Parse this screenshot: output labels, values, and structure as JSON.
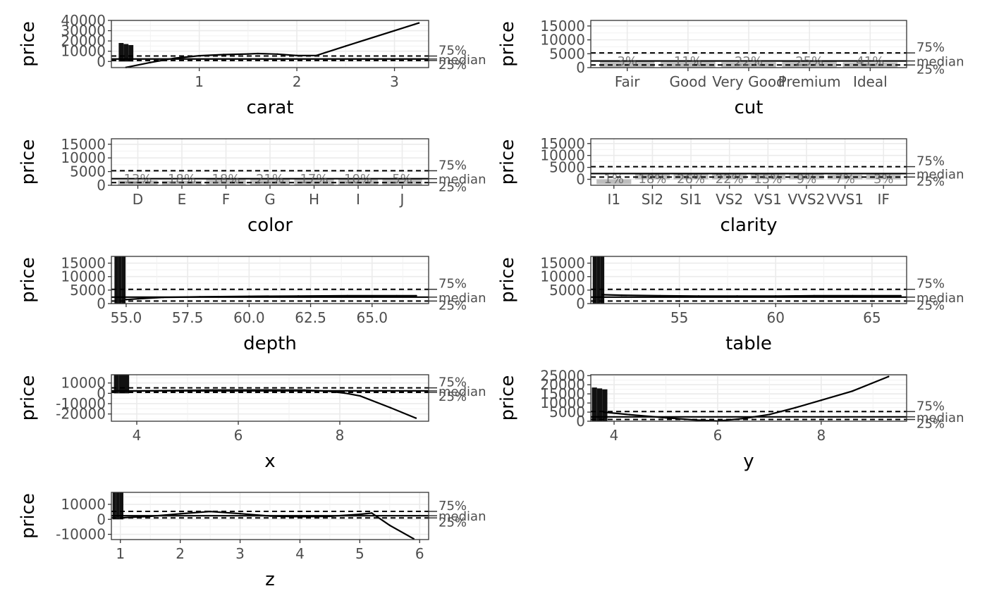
{
  "chart_data": [
    {
      "type": "line",
      "panel_id": "carat",
      "xlabel": "carat",
      "ylabel": "price",
      "xlim": [
        0.1,
        3.35
      ],
      "ylim": [
        -6000,
        40000
      ],
      "x_ticks": [
        1,
        2,
        3
      ],
      "x_tick_labels": [
        "1",
        "2",
        "3"
      ],
      "y_ticks": [
        0,
        10000,
        20000,
        30000,
        40000
      ],
      "y_tick_labels": [
        "0",
        "10000",
        "20000",
        "30000",
        "40000"
      ],
      "reference_lines": {
        "q25": 950,
        "median": 2400,
        "q75": 5300
      },
      "reference_labels": {
        "q25": "25%",
        "median": "median",
        "q75": "75%"
      },
      "histogram": {
        "x": [
          0.2,
          0.25,
          0.3
        ],
        "heights": [
          18000,
          17000,
          16000
        ]
      },
      "trend": {
        "x": [
          0.25,
          0.5,
          0.75,
          1.0,
          1.25,
          1.5,
          1.6,
          1.8,
          2.0,
          2.2,
          2.5,
          3.0,
          3.25
        ],
        "y": [
          -5800,
          -1000,
          3200,
          5600,
          6700,
          7300,
          7700,
          7200,
          5800,
          5800,
          15000,
          30000,
          37500
        ]
      }
    },
    {
      "type": "bar",
      "panel_id": "cut",
      "xlabel": "cut",
      "ylabel": "price",
      "categories": [
        "Fair",
        "Good",
        "Very Good",
        "Premium",
        "Ideal"
      ],
      "percent_labels": [
        "3%",
        "11%",
        "22%",
        "25%",
        "41%"
      ],
      "values": [
        2200,
        2100,
        2000,
        2400,
        1900
      ],
      "ylim": [
        0,
        17000
      ],
      "y_ticks": [
        0,
        5000,
        10000,
        15000
      ],
      "y_tick_labels": [
        "0",
        "5000",
        "10000",
        "15000"
      ],
      "reference_lines": {
        "q25": 950,
        "median": 2400,
        "q75": 5300
      },
      "reference_labels": {
        "q25": "25%",
        "median": "median",
        "q75": "75%"
      }
    },
    {
      "type": "bar",
      "panel_id": "color",
      "xlabel": "color",
      "ylabel": "price",
      "categories": [
        "D",
        "E",
        "F",
        "G",
        "H",
        "I",
        "J"
      ],
      "percent_labels": [
        "13%",
        "18%",
        "18%",
        "21%",
        "17%",
        "10%",
        "5%"
      ],
      "values": [
        1800,
        1700,
        2300,
        2200,
        2400,
        2200,
        2300
      ],
      "ylim": [
        0,
        17000
      ],
      "y_ticks": [
        0,
        5000,
        10000,
        15000
      ],
      "y_tick_labels": [
        "0",
        "5000",
        "10000",
        "15000"
      ],
      "reference_lines": {
        "q25": 950,
        "median": 2400,
        "q75": 5300
      },
      "reference_labels": {
        "q25": "25%",
        "median": "median",
        "q75": "75%"
      }
    },
    {
      "type": "bar",
      "panel_id": "clarity",
      "xlabel": "clarity",
      "ylabel": "price",
      "categories": [
        "I1",
        "SI2",
        "SI1",
        "VS2",
        "VS1",
        "VVS2",
        "VVS1",
        "IF"
      ],
      "percent_labels": [
        "1%",
        "18%",
        "26%",
        "22%",
        "15%",
        "9%",
        "7%",
        "3%"
      ],
      "values": [
        -2000,
        2500,
        2300,
        2300,
        2200,
        2100,
        1900,
        2000
      ],
      "ylim": [
        -2500,
        17000
      ],
      "y_ticks": [
        0,
        5000,
        10000,
        15000
      ],
      "y_tick_labels": [
        "0",
        "5000",
        "10000",
        "15000"
      ],
      "reference_lines": {
        "q25": 950,
        "median": 2400,
        "q75": 5300
      },
      "reference_labels": {
        "q25": "25%",
        "median": "median",
        "q75": "75%"
      }
    },
    {
      "type": "line",
      "panel_id": "depth",
      "xlabel": "depth",
      "ylabel": "price",
      "xlim": [
        54.4,
        67.3
      ],
      "ylim": [
        0,
        17500
      ],
      "x_ticks": [
        55,
        57.5,
        60,
        62.5,
        65
      ],
      "x_tick_labels": [
        "55.0",
        "57.5",
        "60.0",
        "62.5",
        "65.0"
      ],
      "y_ticks": [
        0,
        5000,
        10000,
        15000
      ],
      "y_tick_labels": [
        "0",
        "5000",
        "10000",
        "15000"
      ],
      "reference_lines": {
        "q25": 950,
        "median": 2400,
        "q75": 5300
      },
      "reference_labels": {
        "q25": "25%",
        "median": "median",
        "q75": "75%"
      },
      "histogram": {
        "x": [
          54.6,
          54.75,
          54.9
        ],
        "heights": [
          17500,
          17500,
          17500
        ]
      },
      "trend": {
        "x": [
          55.0,
          55.5,
          56.5,
          58.0,
          60.0,
          62.0,
          64.0,
          66.0,
          66.8
        ],
        "y": [
          1500,
          1800,
          2300,
          2500,
          2700,
          2800,
          2900,
          2900,
          2900
        ]
      }
    },
    {
      "type": "line",
      "panel_id": "table",
      "xlabel": "table",
      "ylabel": "price",
      "xlim": [
        50.4,
        66.8
      ],
      "ylim": [
        0,
        17500
      ],
      "x_ticks": [
        55,
        60,
        65
      ],
      "x_tick_labels": [
        "55",
        "60",
        "65"
      ],
      "y_ticks": [
        0,
        5000,
        10000,
        15000
      ],
      "y_tick_labels": [
        "0",
        "5000",
        "10000",
        "15000"
      ],
      "reference_lines": {
        "q25": 950,
        "median": 2400,
        "q75": 5300
      },
      "reference_labels": {
        "q25": "25%",
        "median": "median",
        "q75": "75%"
      },
      "histogram": {
        "x": [
          50.6,
          50.8,
          51.0
        ],
        "heights": [
          17500,
          17500,
          17500
        ]
      },
      "trend": {
        "x": [
          51.0,
          52.0,
          54.0,
          56.0,
          58.0,
          60.0,
          62.0,
          64.0,
          66.5
        ],
        "y": [
          3300,
          3100,
          2900,
          2800,
          2800,
          2800,
          2900,
          2900,
          2900
        ]
      }
    },
    {
      "type": "line",
      "panel_id": "x",
      "xlabel": "x",
      "ylabel": "price",
      "xlim": [
        3.5,
        9.75
      ],
      "ylim": [
        -27000,
        18000
      ],
      "x_ticks": [
        4,
        6,
        8
      ],
      "x_tick_labels": [
        "4",
        "6",
        "8"
      ],
      "y_ticks": [
        -20000,
        -10000,
        0,
        10000
      ],
      "y_tick_labels": [
        "-20000",
        "-10000",
        "0",
        "10000"
      ],
      "reference_lines": {
        "q25": 950,
        "median": 2400,
        "q75": 5300
      },
      "reference_labels": {
        "q25": "25%",
        "median": "median",
        "q75": "75%"
      },
      "histogram": {
        "x": [
          3.6,
          3.7,
          3.8
        ],
        "heights": [
          18000,
          18000,
          18000
        ]
      },
      "trend": {
        "x": [
          3.7,
          4.5,
          5.5,
          6.5,
          7.3,
          7.8,
          8.1,
          8.4,
          9.0,
          9.5
        ],
        "y": [
          2000,
          2600,
          3200,
          3300,
          3100,
          2000,
          200,
          -2500,
          -14000,
          -24000
        ]
      }
    },
    {
      "type": "line",
      "panel_id": "y",
      "xlabel": "y",
      "ylabel": "price",
      "xlim": [
        3.55,
        9.65
      ],
      "ylim": [
        0,
        25500
      ],
      "x_ticks": [
        4,
        6,
        8
      ],
      "x_tick_labels": [
        "4",
        "6",
        "8"
      ],
      "y_ticks": [
        0,
        5000,
        10000,
        15000,
        20000,
        25000
      ],
      "y_tick_labels": [
        "0",
        "5000",
        "10000",
        "15000",
        "20000",
        "25000"
      ],
      "reference_lines": {
        "q25": 950,
        "median": 2400,
        "q75": 5300
      },
      "reference_labels": {
        "q25": "25%",
        "median": "median",
        "q75": "75%"
      },
      "histogram": {
        "x": [
          3.62,
          3.72,
          3.82
        ],
        "heights": [
          18500,
          18000,
          17500
        ]
      },
      "trend": {
        "x": [
          3.8,
          4.3,
          5.0,
          5.6,
          6.0,
          6.5,
          7.0,
          7.5,
          8.0,
          8.6,
          9.3
        ],
        "y": [
          5000,
          3600,
          1900,
          600,
          100,
          1500,
          3700,
          7400,
          11500,
          16500,
          24500
        ]
      }
    },
    {
      "type": "line",
      "panel_id": "z",
      "xlabel": "z",
      "ylabel": "price",
      "xlim": [
        0.85,
        6.15
      ],
      "ylim": [
        -13500,
        18000
      ],
      "x_ticks": [
        1,
        2,
        3,
        4,
        5,
        6
      ],
      "x_tick_labels": [
        "1",
        "2",
        "3",
        "4",
        "5",
        "6"
      ],
      "y_ticks": [
        -10000,
        0,
        10000
      ],
      "y_tick_labels": [
        "-10000",
        "0",
        "10000"
      ],
      "reference_lines": {
        "q25": 950,
        "median": 2400,
        "q75": 5300
      },
      "reference_labels": {
        "q25": "25%",
        "median": "median",
        "q75": "75%"
      },
      "histogram": {
        "x": [
          0.9,
          0.96,
          1.02
        ],
        "heights": [
          18000,
          18000,
          18000
        ]
      },
      "trend": {
        "x": [
          1.0,
          1.5,
          2.0,
          2.5,
          3.0,
          3.5,
          4.0,
          4.5,
          5.0,
          5.2,
          5.5,
          5.9
        ],
        "y": [
          1000,
          2000,
          3700,
          5200,
          3800,
          2200,
          1800,
          2000,
          3400,
          4200,
          -4000,
          -13000
        ]
      }
    }
  ]
}
